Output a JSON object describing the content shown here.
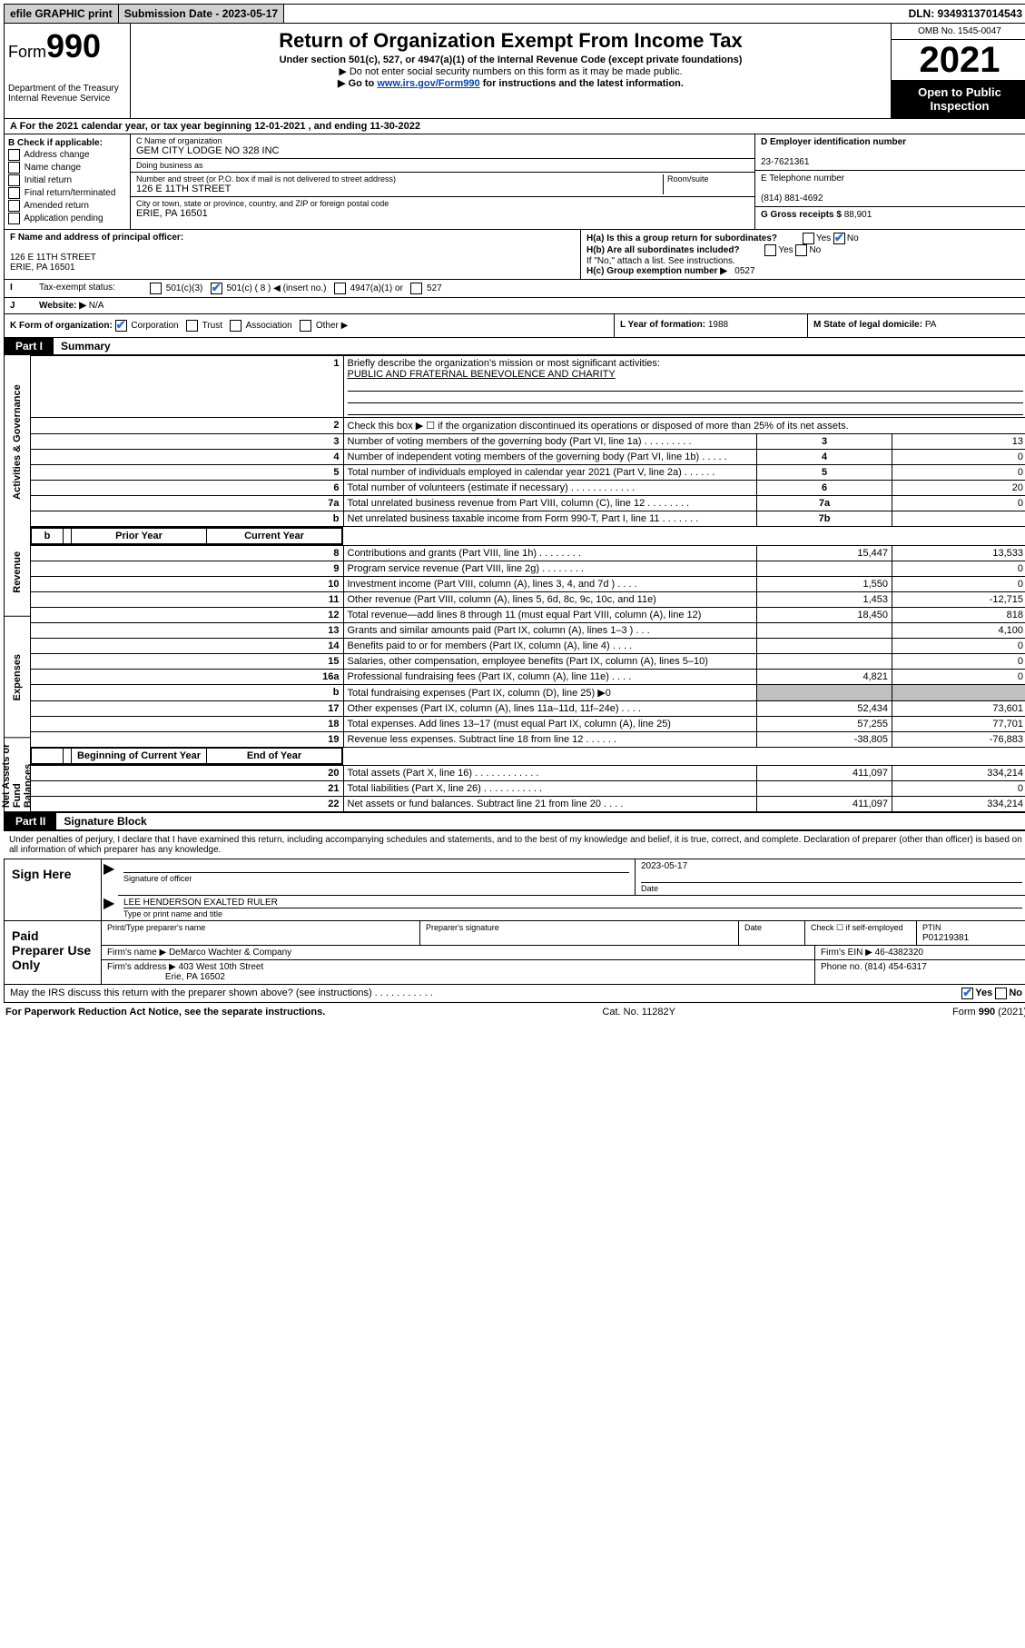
{
  "colors": {
    "link": "#0645ad",
    "check": "#2a6fd6",
    "header_bg": "#000000",
    "gray_cell": "#c0c0c0"
  },
  "topbar": {
    "efile": "efile GRAPHIC print",
    "submission": "Submission Date - 2023-05-17",
    "dln": "DLN: 93493137014543"
  },
  "header": {
    "form_prefix": "Form",
    "form_number": "990",
    "dept": "Department of the Treasury",
    "irs": "Internal Revenue Service",
    "title": "Return of Organization Exempt From Income Tax",
    "sub1": "Under section 501(c), 527, or 4947(a)(1) of the Internal Revenue Code (except private foundations)",
    "sub2_prefix": "▶ Do not enter social security numbers on this form as it may be made public.",
    "sub3_prefix": "▶ Go to ",
    "sub3_link": "www.irs.gov/Form990",
    "sub3_suffix": " for instructions and the latest information.",
    "omb": "OMB No. 1545-0047",
    "year": "2021",
    "open": "Open to Public Inspection"
  },
  "row_a": "A For the 2021 calendar year, or tax year beginning 12-01-2021   , and ending 11-30-2022",
  "section_b": {
    "title": "B Check if applicable:",
    "items": [
      "Address change",
      "Name change",
      "Initial return",
      "Final return/terminated",
      "Amended return",
      "Application pending"
    ]
  },
  "section_c": {
    "name_label": "C Name of organization",
    "name": "GEM CITY LODGE NO 328 INC",
    "dba_label": "Doing business as",
    "dba": "",
    "addr_label": "Number and street (or P.O. box if mail is not delivered to street address)",
    "room_label": "Room/suite",
    "addr": "126 E 11TH STREET",
    "city_label": "City or town, state or province, country, and ZIP or foreign postal code",
    "city": "ERIE, PA  16501"
  },
  "section_d": {
    "ein_label": "D Employer identification number",
    "ein": "23-7621361",
    "phone_label": "E Telephone number",
    "phone": "(814) 881-4692",
    "gross_label": "G Gross receipts $",
    "gross": "88,901"
  },
  "section_f": {
    "label": "F Name and address of principal officer:",
    "addr1": "126 E 11TH STREET",
    "addr2": "ERIE, PA  16501"
  },
  "section_h": {
    "ha": "H(a)  Is this a group return for subordinates?",
    "ha_yes": "Yes",
    "ha_no": "No",
    "hb": "H(b)  Are all subordinates included?",
    "hb_note": "If \"No,\" attach a list. See instructions.",
    "hc": "H(c)  Group exemption number ▶",
    "hc_val": "0527"
  },
  "tax_status": {
    "label_i": "I",
    "label": "Tax-exempt status:",
    "c3": "501(c)(3)",
    "c_other": "501(c) ( 8 ) ◀ (insert no.)",
    "a4947": "4947(a)(1) or",
    "s527": "527"
  },
  "website": {
    "label_j": "J",
    "label": "Website: ▶",
    "val": "N/A"
  },
  "row_k": {
    "label": "K Form of organization:",
    "corp": "Corporation",
    "trust": "Trust",
    "assoc": "Association",
    "other": "Other ▶",
    "l_label": "L Year of formation:",
    "l_val": "1988",
    "m_label": "M State of legal domicile:",
    "m_val": "PA"
  },
  "part1": {
    "label": "Part I",
    "title": "Summary"
  },
  "summary": {
    "q1_label": "1",
    "q1": "Briefly describe the organization's mission or most significant activities:",
    "q1_val": "PUBLIC AND FRATERNAL BENEVOLENCE AND CHARITY",
    "q2_label": "2",
    "q2": "Check this box ▶ ☐  if the organization discontinued its operations or disposed of more than 25% of its net assets.",
    "rows_a": [
      {
        "n": "3",
        "desc": "Number of voting members of the governing body (Part VI, line 1a)   .    .    .    .    .    .    .    .    .",
        "ln": "3",
        "val": "13"
      },
      {
        "n": "4",
        "desc": "Number of independent voting members of the governing body (Part VI, line 1b)   .    .    .    .    .",
        "ln": "4",
        "val": "0"
      },
      {
        "n": "5",
        "desc": "Total number of individuals employed in calendar year 2021 (Part V, line 2a)   .    .    .    .    .    .",
        "ln": "5",
        "val": "0"
      },
      {
        "n": "6",
        "desc": "Total number of volunteers (estimate if necessary)   .    .    .    .    .    .    .    .    .    .    .    .",
        "ln": "6",
        "val": "20"
      },
      {
        "n": "7a",
        "desc": "Total unrelated business revenue from Part VIII, column (C), line 12   .    .    .    .    .    .    .    .",
        "ln": "7a",
        "val": "0"
      },
      {
        "n": "b",
        "desc": "Net unrelated business taxable income from Form 990-T, Part I, line 11   .    .    .    .    .    .    .",
        "ln": "7b",
        "val": ""
      }
    ],
    "col_hdr_prior": "Prior Year",
    "col_hdr_curr": "Current Year",
    "revenue": [
      {
        "n": "8",
        "desc": "Contributions and grants (Part VIII, line 1h)   .    .    .    .    .    .    .    .",
        "prior": "15,447",
        "curr": "13,533"
      },
      {
        "n": "9",
        "desc": "Program service revenue (Part VIII, line 2g)   .    .    .    .    .    .    .    .",
        "prior": "",
        "curr": "0"
      },
      {
        "n": "10",
        "desc": "Investment income (Part VIII, column (A), lines 3, 4, and 7d )   .    .    .    .",
        "prior": "1,550",
        "curr": "0"
      },
      {
        "n": "11",
        "desc": "Other revenue (Part VIII, column (A), lines 5, 6d, 8c, 9c, 10c, and 11e)",
        "prior": "1,453",
        "curr": "-12,715"
      },
      {
        "n": "12",
        "desc": "Total revenue—add lines 8 through 11 (must equal Part VIII, column (A), line 12)",
        "prior": "18,450",
        "curr": "818"
      }
    ],
    "expenses": [
      {
        "n": "13",
        "desc": "Grants and similar amounts paid (Part IX, column (A), lines 1–3 )   .    .    .",
        "prior": "",
        "curr": "4,100"
      },
      {
        "n": "14",
        "desc": "Benefits paid to or for members (Part IX, column (A), line 4)   .    .    .    .",
        "prior": "",
        "curr": "0"
      },
      {
        "n": "15",
        "desc": "Salaries, other compensation, employee benefits (Part IX, column (A), lines 5–10)",
        "prior": "",
        "curr": "0"
      },
      {
        "n": "16a",
        "desc": "Professional fundraising fees (Part IX, column (A), line 11e)   .    .    .    .",
        "prior": "4,821",
        "curr": "0"
      },
      {
        "n": "b",
        "desc": "Total fundraising expenses (Part IX, column (D), line 25) ▶0",
        "prior": "GRAY",
        "curr": "GRAY"
      },
      {
        "n": "17",
        "desc": "Other expenses (Part IX, column (A), lines 11a–11d, 11f–24e)   .    .    .    .",
        "prior": "52,434",
        "curr": "73,601"
      },
      {
        "n": "18",
        "desc": "Total expenses. Add lines 13–17 (must equal Part IX, column (A), line 25)",
        "prior": "57,255",
        "curr": "77,701"
      },
      {
        "n": "19",
        "desc": "Revenue less expenses. Subtract line 18 from line 12   .    .    .    .    .    .",
        "prior": "-38,805",
        "curr": "-76,883"
      }
    ],
    "col_hdr_begin": "Beginning of Current Year",
    "col_hdr_end": "End of Year",
    "netassets": [
      {
        "n": "20",
        "desc": "Total assets (Part X, line 16)   .    .    .    .    .    .    .    .    .    .    .    .",
        "prior": "411,097",
        "curr": "334,214"
      },
      {
        "n": "21",
        "desc": "Total liabilities (Part X, line 26)   .    .    .    .    .    .    .    .    .    .    .",
        "prior": "",
        "curr": "0"
      },
      {
        "n": "22",
        "desc": "Net assets or fund balances. Subtract line 21 from line 20   .    .    .    .",
        "prior": "411,097",
        "curr": "334,214"
      }
    ],
    "vlabels": {
      "activities": "Activities & Governance",
      "revenue": "Revenue",
      "expenses": "Expenses",
      "netassets": "Net Assets or Fund Balances"
    }
  },
  "part2": {
    "label": "Part II",
    "title": "Signature Block"
  },
  "penalties": "Under penalties of perjury, I declare that I have examined this return, including accompanying schedules and statements, and to the best of my knowledge and belief, it is true, correct, and complete. Declaration of preparer (other than officer) is based on all information of which preparer has any knowledge.",
  "sign": {
    "side": "Sign Here",
    "sig_label": "Signature of officer",
    "date_val": "2023-05-17",
    "date_label": "Date",
    "name_val": "LEE HENDERSON  EXALTED RULER",
    "name_label": "Type or print name and title"
  },
  "paid": {
    "side": "Paid Preparer Use Only",
    "h1": "Print/Type preparer's name",
    "h2": "Preparer's signature",
    "h3": "Date",
    "h4_check": "Check ☐ if self-employed",
    "h5": "PTIN",
    "ptin": "P01219381",
    "firm_name_label": "Firm's name    ▶",
    "firm_name": "DeMarco Wachter & Company",
    "firm_ein_label": "Firm's EIN ▶",
    "firm_ein": "46-4382320",
    "firm_addr_label": "Firm's address ▶",
    "firm_addr": "403 West 10th Street",
    "firm_addr2": "Erie, PA  16502",
    "phone_label": "Phone no.",
    "phone": "(814) 454-6317"
  },
  "discuss": {
    "text": "May the IRS discuss this return with the preparer shown above? (see instructions)   .    .    .    .    .    .    .    .    .    .    .",
    "yes": "Yes",
    "no": "No"
  },
  "footer": {
    "left": "For Paperwork Reduction Act Notice, see the separate instructions.",
    "mid": "Cat. No. 11282Y",
    "right_prefix": "Form ",
    "right_form": "990",
    "right_suffix": " (2021)"
  }
}
